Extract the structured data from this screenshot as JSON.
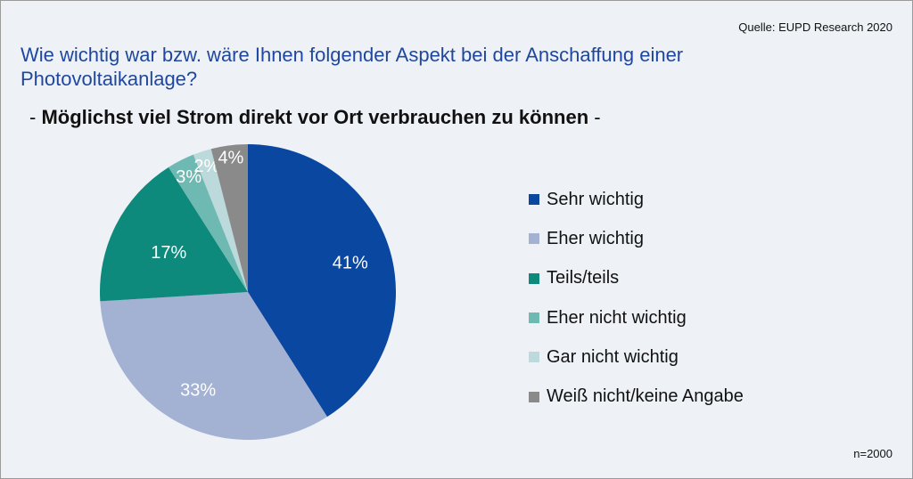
{
  "source": "Quelle: EUPD Research 2020",
  "question": "Wie wichtig war bzw. wäre Ihnen folgender Aspekt bei der Anschaffung einer Photovoltaikanlage?",
  "subtitle": {
    "prefix": "- ",
    "text": "Möglichst viel Strom direkt vor Ort verbrauchen zu können",
    "suffix": " -"
  },
  "sample_size": "n=2000",
  "chart_data": {
    "type": "pie",
    "categories": [
      "Sehr wichtig",
      "Eher wichtig",
      "Teils/teils",
      "Eher nicht wichtig",
      "Gar nicht wichtig",
      "Weiß nicht/keine Angabe"
    ],
    "values": [
      41,
      33,
      17,
      3,
      2,
      4
    ],
    "labels": [
      "41%",
      "33%",
      "17%",
      "3%",
      "2%",
      "4%"
    ],
    "colors": [
      "#0a47a1",
      "#a3b1d3",
      "#0e8a7c",
      "#6fb9b3",
      "#bcd9db",
      "#8a8a8a"
    ],
    "legend_position": "right",
    "start": "top, clockwise"
  }
}
